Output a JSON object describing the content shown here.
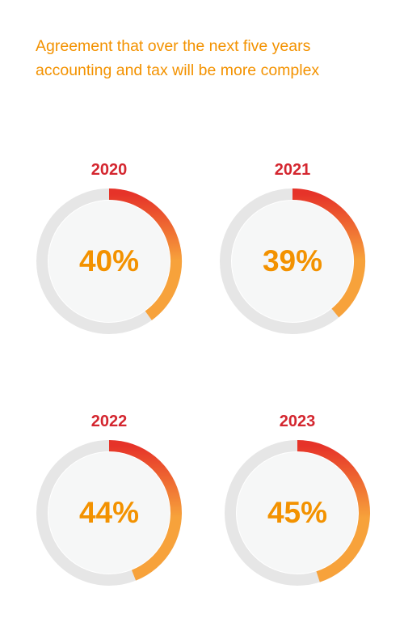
{
  "chart_data": {
    "type": "donut",
    "title_lines": [
      "Agreement that over the next five years",
      "accounting and tax will be more complex"
    ],
    "categories": [
      "2020",
      "2021",
      "2022",
      "2023"
    ],
    "values": [
      40,
      39,
      44,
      45
    ],
    "value_labels": [
      "40%",
      "39%",
      "44%",
      "45%"
    ],
    "range": [
      0,
      100
    ],
    "colors": {
      "arc_start": "#e63329",
      "arc_end": "#f7a23b",
      "track": "#e6e6e6",
      "center_fill": "#f6f7f7",
      "year_text": "#d4262f",
      "value_text": "#f39200"
    }
  }
}
